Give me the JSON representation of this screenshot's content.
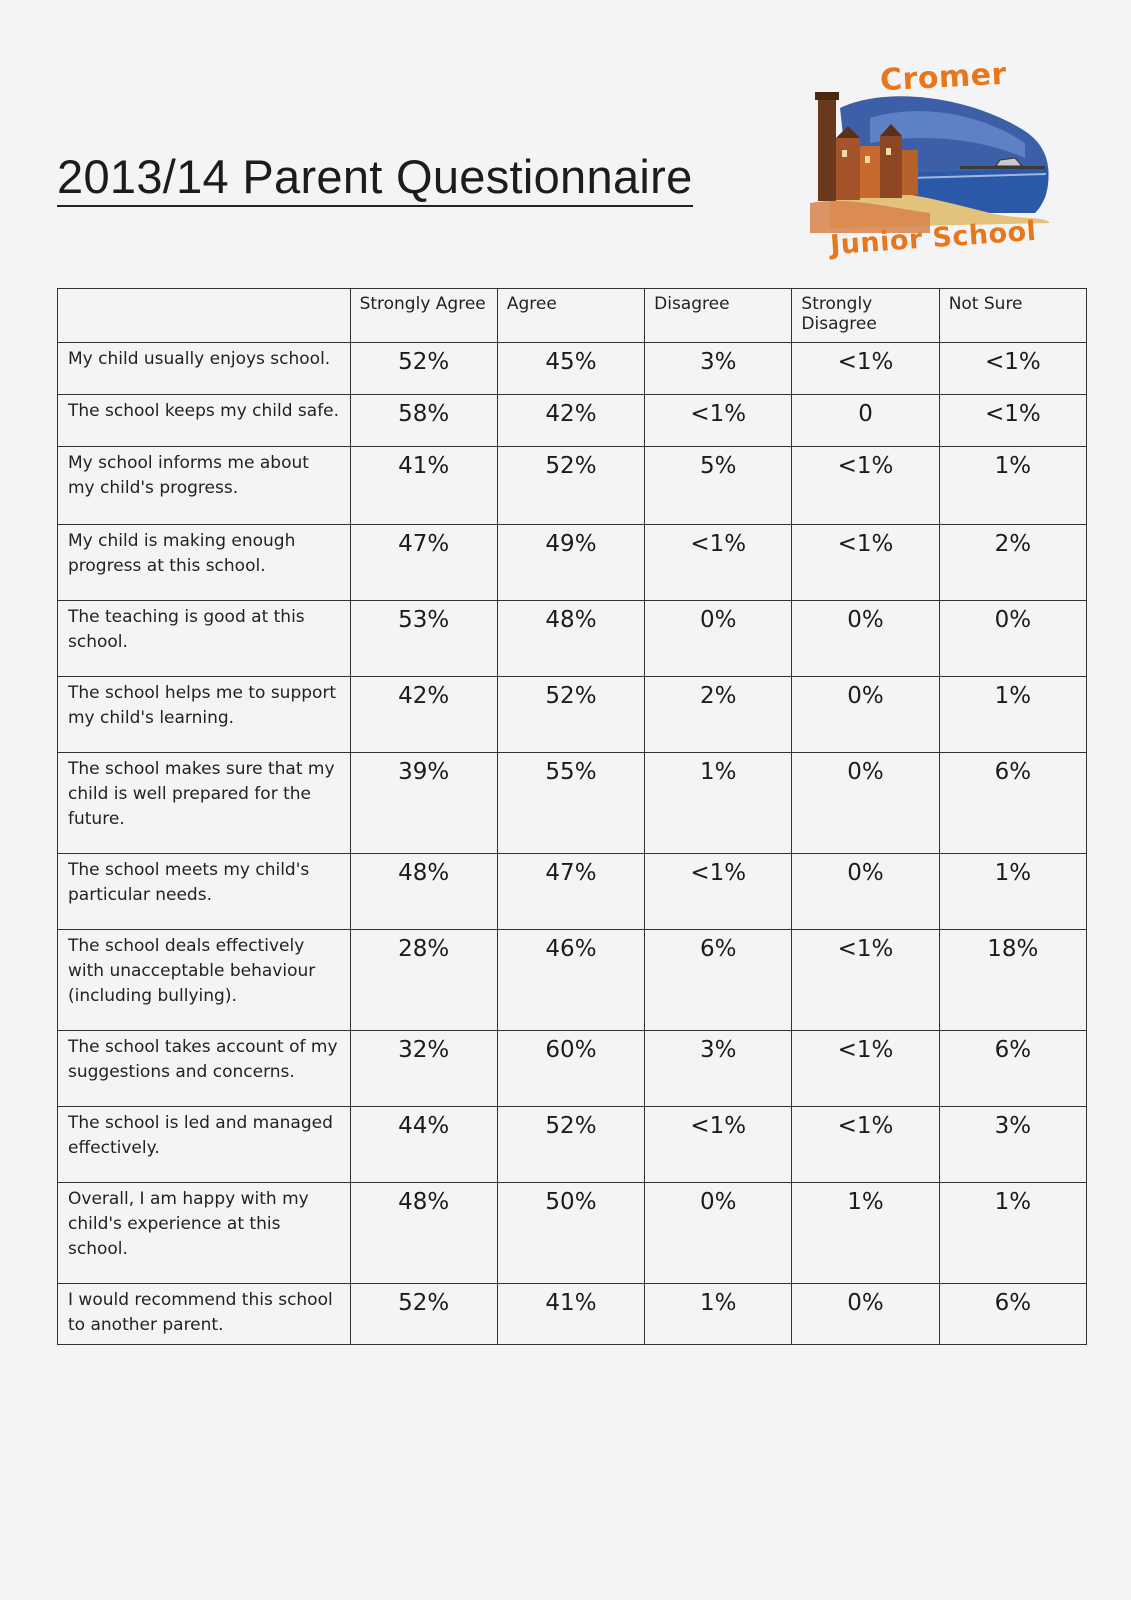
{
  "title": "2013/14 Parent Questionnaire",
  "logo": {
    "top_text": "Cromer",
    "bottom_text": "Junior School"
  },
  "table": {
    "headers": [
      "",
      "Strongly Agree",
      "Agree",
      "Disagree",
      "Strongly Disagree",
      "Not Sure"
    ],
    "rows": [
      {
        "question": "My child usually enjoys school.",
        "values": [
          "52%",
          "45%",
          "3%",
          "<1%",
          "<1%"
        ]
      },
      {
        "question": "The school keeps my child safe.",
        "values": [
          "58%",
          "42%",
          "<1%",
          "0",
          "<1%"
        ]
      },
      {
        "question": "My school informs me about my child's progress.",
        "values": [
          "41%",
          "52%",
          "5%",
          "<1%",
          "1%"
        ]
      },
      {
        "question": "My child is making enough progress at this school.",
        "values": [
          "47%",
          "49%",
          "<1%",
          "<1%",
          "2%"
        ]
      },
      {
        "question": "The teaching is good at this school.",
        "values": [
          "53%",
          "48%",
          "0%",
          "0%",
          "0%"
        ]
      },
      {
        "question": "The school helps me to support my child's learning.",
        "values": [
          "42%",
          "52%",
          "2%",
          "0%",
          "1%"
        ]
      },
      {
        "question": "The school makes sure that my child is well prepared for the future.",
        "values": [
          "39%",
          "55%",
          "1%",
          "0%",
          "6%"
        ]
      },
      {
        "question": "The school meets my child's particular needs.",
        "values": [
          "48%",
          "47%",
          "<1%",
          "0%",
          "1%"
        ]
      },
      {
        "question": "The school deals effectively with unacceptable behaviour (including bullying).",
        "values": [
          "28%",
          "46%",
          "6%",
          "<1%",
          "18%"
        ]
      },
      {
        "question": "The school takes account of my suggestions and concerns.",
        "values": [
          "32%",
          "60%",
          "3%",
          "<1%",
          "6%"
        ]
      },
      {
        "question": "The school is led and managed effectively.",
        "values": [
          "44%",
          "52%",
          "<1%",
          "<1%",
          "3%"
        ]
      },
      {
        "question": "Overall, I am happy with my child's experience at this school.",
        "values": [
          "48%",
          "50%",
          "0%",
          "1%",
          "1%"
        ]
      },
      {
        "question": "I would recommend this school to another parent.",
        "values": [
          "52%",
          "41%",
          "1%",
          "0%",
          "6%"
        ]
      }
    ]
  }
}
